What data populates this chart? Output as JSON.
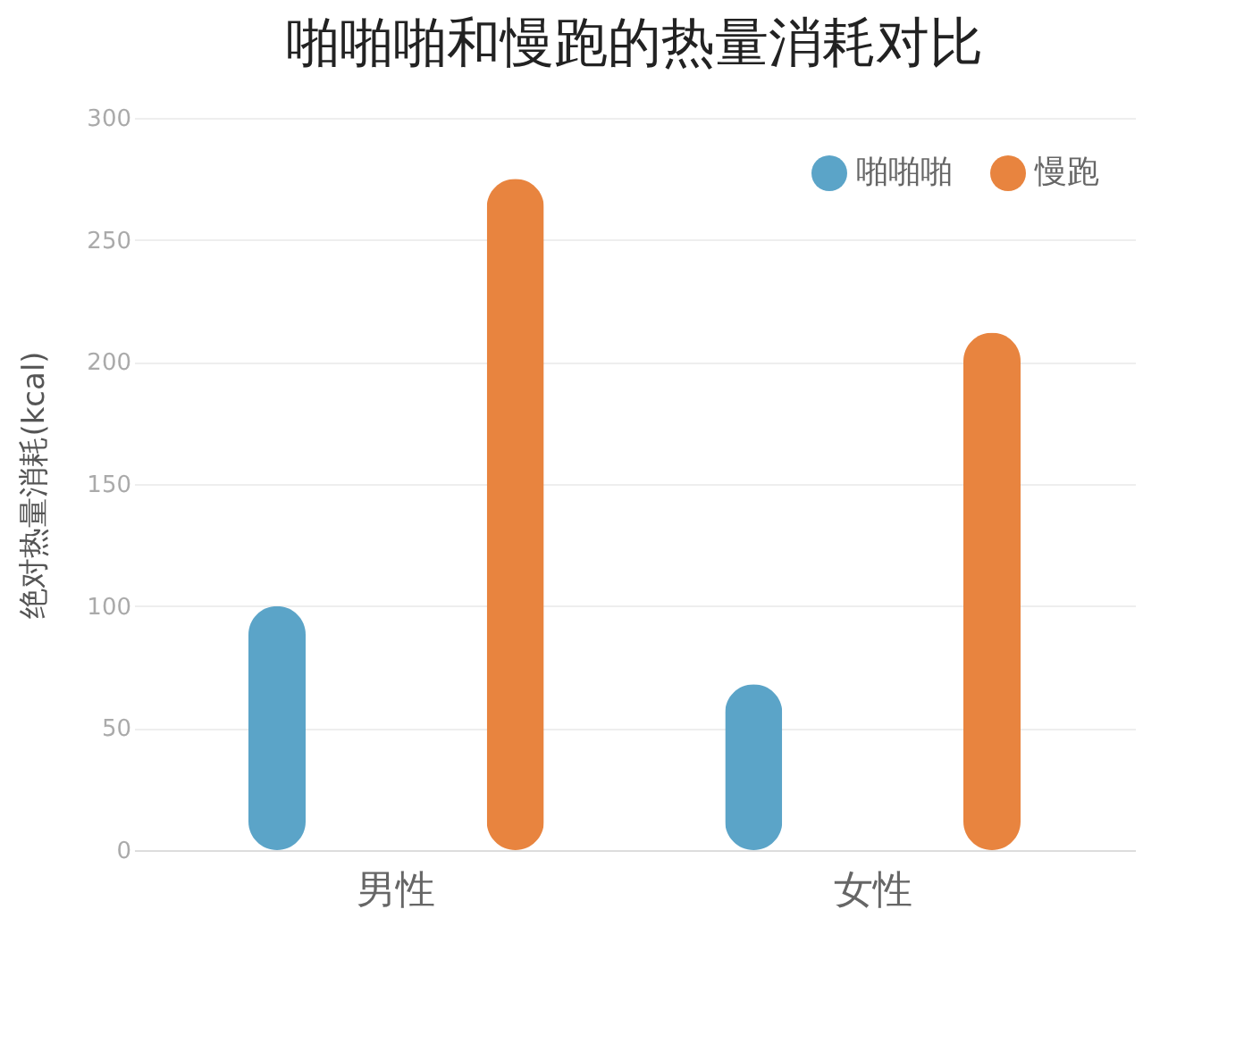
{
  "chart_data": {
    "type": "bar",
    "title": "啪啪啪和慢跑的热量消耗对比",
    "ylabel": "绝对热量消耗(kcal)",
    "categories": [
      "男性",
      "女性"
    ],
    "series": [
      {
        "name": "啪啪啪",
        "color": "#5ba4c8",
        "values": [
          100,
          68
        ]
      },
      {
        "name": "慢跑",
        "color": "#e8843f",
        "values": [
          275,
          212
        ]
      }
    ],
    "ylim": [
      0,
      300
    ],
    "yticks": [
      0,
      50,
      100,
      150,
      200,
      250,
      300
    ],
    "grid": "y",
    "legend": "top right"
  }
}
